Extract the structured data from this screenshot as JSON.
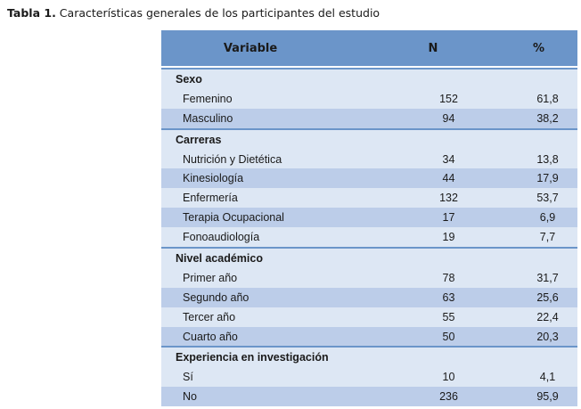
{
  "caption": {
    "label": "Tabla 1.",
    "text": " Características generales de los participantes del estudio"
  },
  "header": {
    "variable": "Variable",
    "n": "N",
    "pct": "%"
  },
  "sections": [
    {
      "title": "Sexo",
      "rows": [
        {
          "label": "Femenino",
          "n": "152",
          "pct": "61,8"
        },
        {
          "label": "Masculino",
          "n": "94",
          "pct": "38,2"
        }
      ]
    },
    {
      "title": "Carreras",
      "rows": [
        {
          "label": "Nutrición y Dietética",
          "n": "34",
          "pct": "13,8"
        },
        {
          "label": "Kinesiología",
          "n": "44",
          "pct": "17,9"
        },
        {
          "label": "Enfermería",
          "n": "132",
          "pct": "53,7"
        },
        {
          "label": "Terapia Ocupacional",
          "n": "17",
          "pct": "6,9"
        },
        {
          "label": "Fonoaudiología",
          "n": "19",
          "pct": "7,7"
        }
      ]
    },
    {
      "title": "Nivel académico",
      "rows": [
        {
          "label": "Primer año",
          "n": "78",
          "pct": "31,7"
        },
        {
          "label": "Segundo año",
          "n": "63",
          "pct": "25,6"
        },
        {
          "label": "Tercer año",
          "n": "55",
          "pct": "22,4"
        },
        {
          "label": "Cuarto año",
          "n": "50",
          "pct": "20,3"
        }
      ]
    },
    {
      "title": "Experiencia en investigación",
      "rows": [
        {
          "label": "Sí",
          "n": "10",
          "pct": "4,1"
        },
        {
          "label": "No",
          "n": "236",
          "pct": "95,9"
        }
      ]
    }
  ]
}
